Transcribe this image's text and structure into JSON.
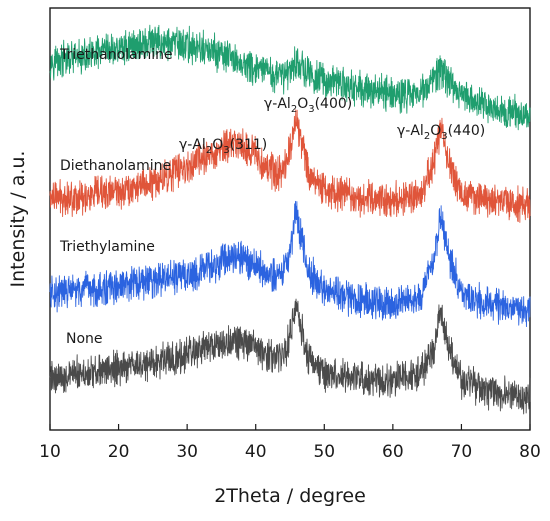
{
  "chart_data": {
    "type": "line",
    "title": "",
    "xlabel": "2Theta / degree",
    "ylabel": "Intensity / a.u.",
    "xlim": [
      10,
      80
    ],
    "xticks": [
      10,
      20,
      30,
      40,
      50,
      60,
      70,
      80
    ],
    "y_ticks_shown": false,
    "grid": false,
    "legend": "none",
    "series": [
      {
        "name": "Triethanolamine",
        "color": "#1f9e6e",
        "points": [
          [
            10,
            11.9
          ],
          [
            15,
            12.0
          ],
          [
            20,
            12.3
          ],
          [
            25,
            12.5
          ],
          [
            30,
            12.4
          ],
          [
            35,
            12.1
          ],
          [
            40,
            11.6
          ],
          [
            44,
            11.4
          ],
          [
            46,
            11.9
          ],
          [
            48,
            11.4
          ],
          [
            55,
            11.0
          ],
          [
            62,
            10.8
          ],
          [
            65,
            11.0
          ],
          [
            67,
            11.6
          ],
          [
            69,
            11.0
          ],
          [
            72,
            10.6
          ],
          [
            76,
            10.3
          ],
          [
            80,
            10.1
          ]
        ]
      },
      {
        "name": "Diethanolamine",
        "color": "#e0553a",
        "points": [
          [
            10,
            7.5
          ],
          [
            15,
            7.5
          ],
          [
            20,
            7.7
          ],
          [
            25,
            8.0
          ],
          [
            30,
            8.5
          ],
          [
            34,
            8.9
          ],
          [
            37,
            9.3
          ],
          [
            40,
            8.9
          ],
          [
            43,
            8.2
          ],
          [
            44.5,
            8.6
          ],
          [
            45.5,
            9.6
          ],
          [
            46,
            10.0
          ],
          [
            46.5,
            9.5
          ],
          [
            47.5,
            8.4
          ],
          [
            50,
            7.7
          ],
          [
            55,
            7.5
          ],
          [
            60,
            7.4
          ],
          [
            64,
            7.6
          ],
          [
            66,
            8.6
          ],
          [
            67,
            9.8
          ],
          [
            68,
            8.8
          ],
          [
            70,
            7.6
          ],
          [
            73,
            7.4
          ],
          [
            76,
            7.3
          ],
          [
            80,
            7.2
          ]
        ]
      },
      {
        "name": "Triethylamine",
        "color": "#2b63e0",
        "points": [
          [
            10,
            4.4
          ],
          [
            15,
            4.5
          ],
          [
            20,
            4.6
          ],
          [
            25,
            4.8
          ],
          [
            30,
            5.0
          ],
          [
            34,
            5.3
          ],
          [
            37,
            5.7
          ],
          [
            40,
            5.3
          ],
          [
            43,
            4.9
          ],
          [
            44.5,
            5.3
          ],
          [
            45.5,
            6.5
          ],
          [
            46,
            7.0
          ],
          [
            46.5,
            6.4
          ],
          [
            47.5,
            5.2
          ],
          [
            50,
            4.5
          ],
          [
            55,
            4.2
          ],
          [
            60,
            4.1
          ],
          [
            64,
            4.3
          ],
          [
            66,
            5.5
          ],
          [
            67,
            6.9
          ],
          [
            68,
            5.7
          ],
          [
            70,
            4.4
          ],
          [
            73,
            4.1
          ],
          [
            76,
            4.0
          ],
          [
            80,
            3.9
          ]
        ]
      },
      {
        "name": "None",
        "color": "#4a4a4a",
        "points": [
          [
            10,
            1.7
          ],
          [
            15,
            1.8
          ],
          [
            20,
            2.0
          ],
          [
            25,
            2.2
          ],
          [
            30,
            2.4
          ],
          [
            34,
            2.7
          ],
          [
            37,
            2.9
          ],
          [
            40,
            2.6
          ],
          [
            43,
            2.3
          ],
          [
            44.5,
            2.6
          ],
          [
            45.5,
            3.6
          ],
          [
            46,
            4.0
          ],
          [
            46.5,
            3.4
          ],
          [
            47.5,
            2.4
          ],
          [
            50,
            1.8
          ],
          [
            55,
            1.6
          ],
          [
            60,
            1.6
          ],
          [
            64,
            1.8
          ],
          [
            66,
            2.7
          ],
          [
            67,
            3.8
          ],
          [
            68,
            2.8
          ],
          [
            70,
            1.6
          ],
          [
            73,
            1.3
          ],
          [
            76,
            1.2
          ],
          [
            80,
            1.1
          ]
        ]
      }
    ],
    "annotations": [
      {
        "main": "γ-Al",
        "sub1": "2",
        "mid": "O",
        "sub2": "3",
        "tail": "(311)"
      },
      {
        "main": "γ-Al",
        "sub1": "2",
        "mid": "O",
        "sub2": "3",
        "tail": "(400)"
      },
      {
        "main": "γ-Al",
        "sub1": "2",
        "mid": "O",
        "sub2": "3",
        "tail": "(440)"
      }
    ]
  }
}
